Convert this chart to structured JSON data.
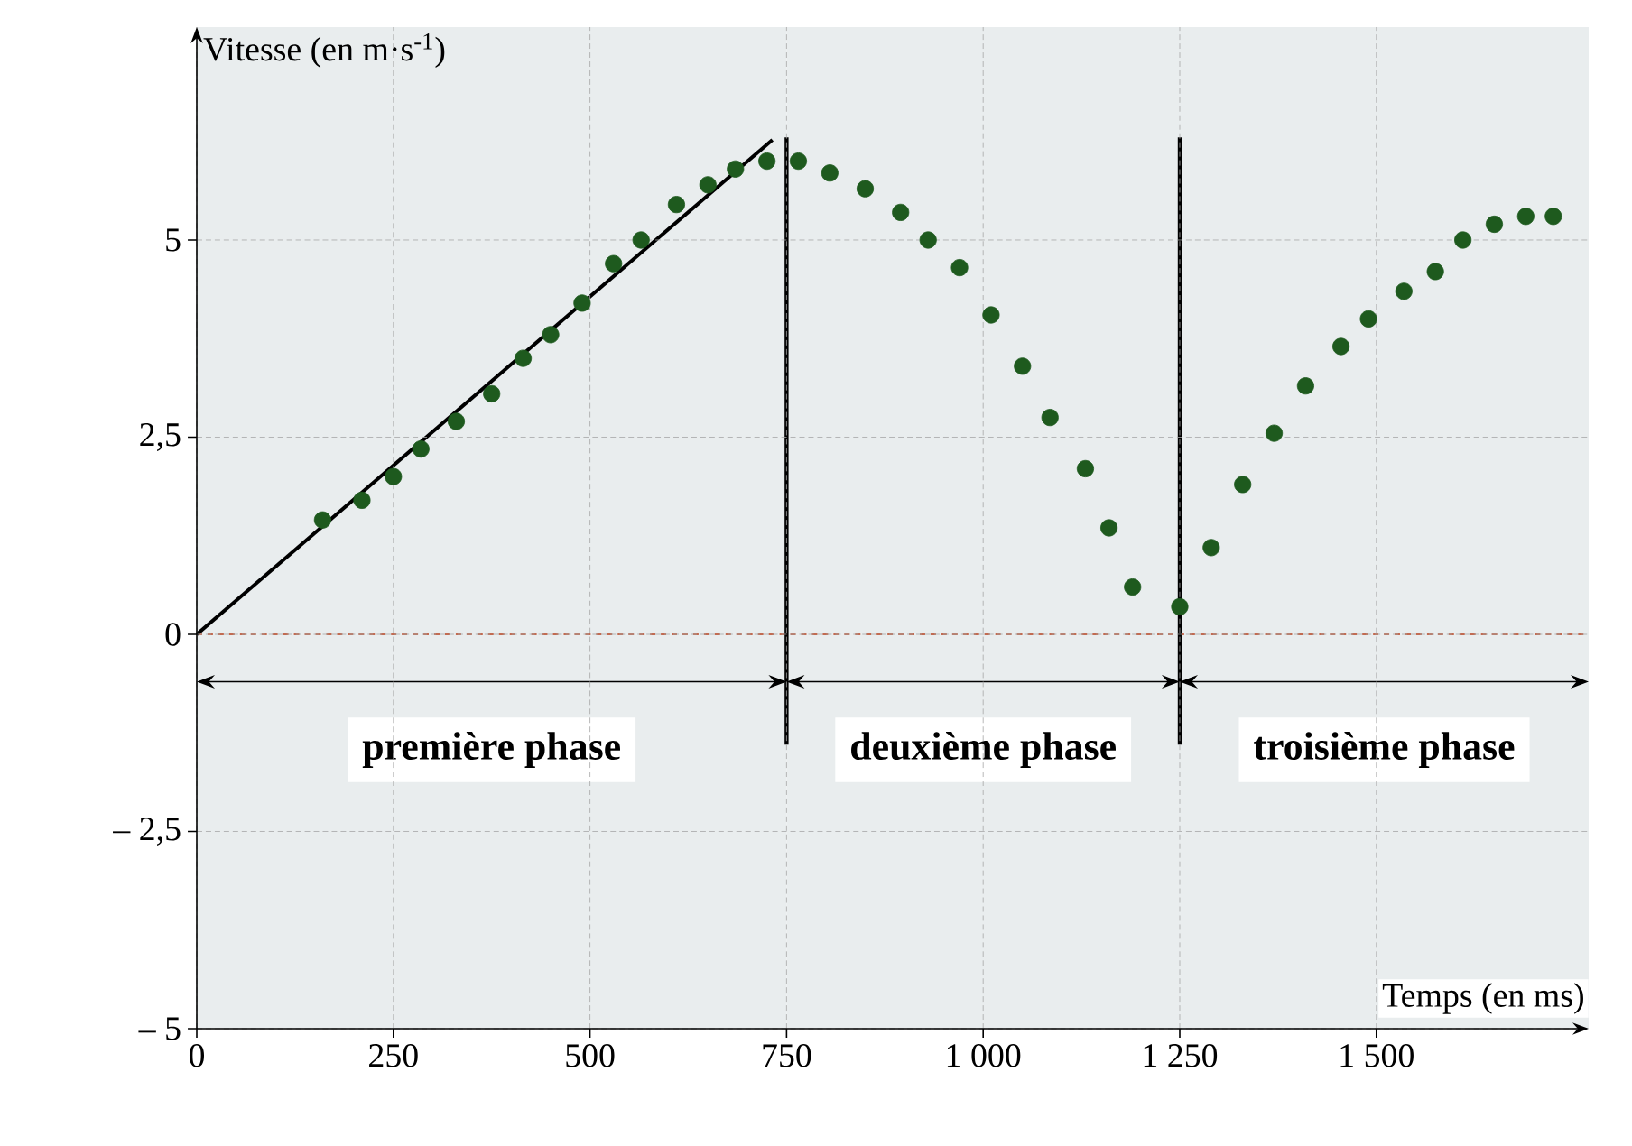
{
  "chart_data": {
    "type": "scatter",
    "xlabel": "Temps (en ms)",
    "ylabel": "Vitesse (en m·s$^{-1}$)",
    "series": [
      {
        "color": "#1e5a1e",
        "marker": "circle",
        "x": [
          160,
          210,
          250,
          285,
          330,
          375,
          415,
          450,
          490,
          530,
          565,
          610,
          650,
          685,
          725,
          765,
          805,
          850,
          895,
          930,
          970,
          1010,
          1050,
          1085,
          1130,
          1160,
          1190,
          1250,
          1290,
          1330,
          1370,
          1410,
          1455,
          1490,
          1535,
          1575,
          1610,
          1650,
          1690,
          1725
        ],
        "values": [
          1.45,
          1.7,
          2.0,
          2.35,
          2.7,
          3.05,
          3.5,
          3.8,
          4.2,
          4.7,
          5.0,
          5.45,
          5.7,
          5.9,
          6.0,
          6.0,
          5.85,
          5.65,
          5.35,
          5.0,
          4.65,
          4.05,
          3.4,
          2.75,
          2.1,
          1.35,
          0.6,
          0.35,
          1.1,
          1.9,
          2.55,
          3.15,
          3.65,
          4.0,
          4.35,
          4.6,
          5.0,
          5.2,
          5.3,
          5.3
        ]
      },
      {
        "type": "line",
        "color": "#000000",
        "marker": "none",
        "line_style": "solid",
        "x": [
          0,
          732
        ],
        "values": [
          0,
          6.27
        ]
      }
    ],
    "xlim": [
      0,
      1770
    ],
    "ylim": [
      -5,
      7.7
    ],
    "xticks": [
      0,
      250,
      500,
      750,
      {
        "value": 1000,
        "label": "1 000"
      },
      {
        "value": 1250,
        "label": "1 250"
      },
      {
        "value": 1500,
        "label": "1 500"
      }
    ],
    "yticks": [
      {
        "value": -5,
        "label": "– 5"
      },
      {
        "value": -2.5,
        "label": "– 2,5"
      },
      0,
      {
        "value": 2.5,
        "label": "2,5"
      },
      5
    ],
    "grid": true,
    "ref_lines": [
      {
        "axis": "y",
        "value": 0,
        "color": "#b5401e",
        "line_style": "dashed"
      },
      {
        "axis": "x",
        "value": 750,
        "color": "#000000",
        "line_style": "solid"
      },
      {
        "axis": "x",
        "value": 1250,
        "color": "#000000",
        "line_style": "solid"
      }
    ],
    "bands": [
      {
        "axis": "x",
        "from": 0,
        "to": 750,
        "label": "première phase",
        "color": "#e9edee"
      },
      {
        "axis": "x",
        "from": 750,
        "to": 1250,
        "label": "deuxième phase",
        "color": "#e9edee"
      },
      {
        "axis": "x",
        "from": 1250,
        "to": 1770,
        "label": "troisième phase",
        "color": "#e9edee"
      }
    ]
  }
}
